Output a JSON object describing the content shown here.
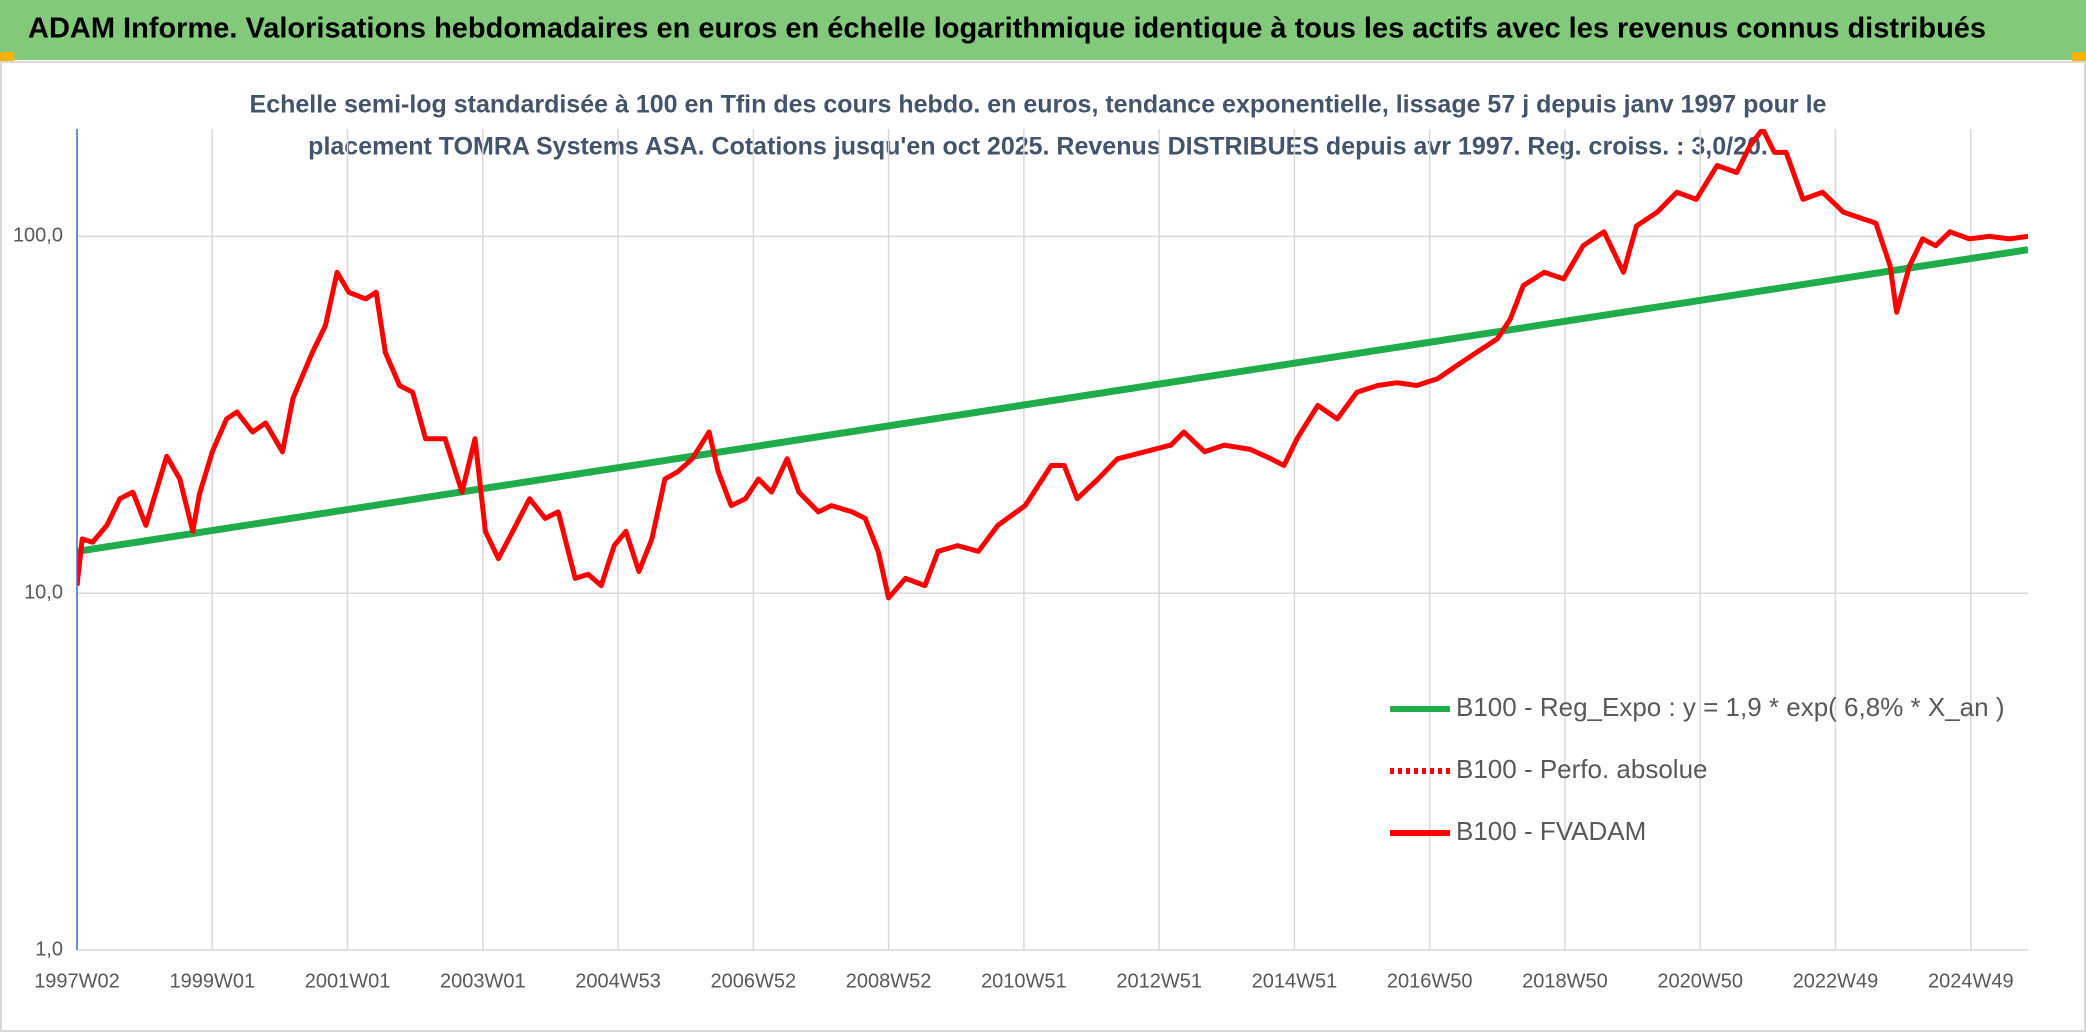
{
  "chart_data": {
    "type": "line",
    "title": "ADAM Informe. Valorisations hebdomadaires en euros en échelle logarithmique identique à tous les actifs avec les revenus connus distribués",
    "subtitle": [
      "Echelle semi-log standardisée à 100 en Tfin des cours hebdo. en euros, tendance exponentielle, lissage 57 j depuis janv 1997 pour le",
      "placement TOMRA Systems ASA. Cotations jusqu'en oct 2025. Revenus DISTRIBUES depuis avr 1997. Reg. croiss. : 3,0/20."
    ],
    "xlim": [
      0,
      1500
    ],
    "xticks": [
      {
        "value": 0,
        "label": "1997W02"
      },
      {
        "value": 104,
        "label": "1999W01"
      },
      {
        "value": 208,
        "label": "2001W01"
      },
      {
        "value": 312,
        "label": "2003W01"
      },
      {
        "value": 416,
        "label": "2004W53"
      },
      {
        "value": 520,
        "label": "2006W52"
      },
      {
        "value": 624,
        "label": "2008W52"
      },
      {
        "value": 728,
        "label": "2010W51"
      },
      {
        "value": 832,
        "label": "2012W51"
      },
      {
        "value": 936,
        "label": "2014W51"
      },
      {
        "value": 1040,
        "label": "2016W50"
      },
      {
        "value": 1144,
        "label": "2018W50"
      },
      {
        "value": 1248,
        "label": "2020W50"
      },
      {
        "value": 1352,
        "label": "2022W49"
      },
      {
        "value": 1456,
        "label": "2024W49"
      }
    ],
    "ylim": [
      1,
      200
    ],
    "yticks": [
      {
        "value": 1,
        "label": "1,0"
      },
      {
        "value": 10,
        "label": "10,0"
      },
      {
        "value": 100,
        "label": "100,0"
      }
    ],
    "log_y": true,
    "grid": true,
    "legend": "right",
    "series": [
      {
        "name": "B100 - Reg_Expo : y = 1,9 * exp( 6,8% *  X_an )",
        "color": "#1fad4b",
        "style": "solid",
        "x": [
          0,
          1500
        ],
        "values": [
          13.1,
          91.8
        ]
      },
      {
        "name": "B100 - Perfo. absolue",
        "color": "#ff0000",
        "style": "dotted",
        "x": [],
        "values": []
      },
      {
        "name": "B100 - FVADAM",
        "color": "#ff0000",
        "style": "solid",
        "x": [
          0,
          4,
          12,
          23,
          33,
          43,
          53,
          69,
          79,
          89,
          94,
          104,
          115,
          123,
          135,
          145,
          158,
          166,
          181,
          191,
          200,
          209,
          222,
          230,
          237,
          248,
          258,
          268,
          283,
          296,
          306,
          314,
          324,
          335,
          348,
          360,
          370,
          383,
          393,
          403,
          413,
          422,
          432,
          442,
          452,
          462,
          473,
          486,
          493,
          503,
          514,
          524,
          534,
          546,
          555,
          570,
          580,
          596,
          606,
          616,
          624,
          637,
          652,
          662,
          677,
          693,
          708,
          729,
          749,
          759,
          769,
          785,
          800,
          821,
          841,
          851,
          867,
          882,
          902,
          918,
          928,
          938,
          954,
          969,
          984,
          1000,
          1015,
          1030,
          1046,
          1061,
          1076,
          1092,
          1102,
          1112,
          1128,
          1143,
          1158,
          1174,
          1189,
          1199,
          1215,
          1230,
          1245,
          1261,
          1276,
          1286,
          1296,
          1305,
          1314,
          1327,
          1342,
          1358,
          1373,
          1383,
          1394,
          1399,
          1409,
          1419,
          1429,
          1440,
          1455,
          1470,
          1486,
          1500
        ],
        "values": [
          10.5,
          14.2,
          13.9,
          15.5,
          18.4,
          19.2,
          15.5,
          24.2,
          20.9,
          14.9,
          18.9,
          24.9,
          30.8,
          32.2,
          28.3,
          30.0,
          24.9,
          35.1,
          47.3,
          56.2,
          79.3,
          69.7,
          66.8,
          69.7,
          47.3,
          38.2,
          36.6,
          27.1,
          27.1,
          19.2,
          27.1,
          14.9,
          12.5,
          14.9,
          18.4,
          16.2,
          16.9,
          11.0,
          11.3,
          10.5,
          13.6,
          14.9,
          11.5,
          14.2,
          20.9,
          21.9,
          23.8,
          28.3,
          21.9,
          17.6,
          18.4,
          20.9,
          19.2,
          23.8,
          19.2,
          16.9,
          17.6,
          16.9,
          16.2,
          13.1,
          9.7,
          11.0,
          10.5,
          13.1,
          13.6,
          13.1,
          15.5,
          17.6,
          22.8,
          22.8,
          18.4,
          20.9,
          23.8,
          24.9,
          26.0,
          28.3,
          24.9,
          26.0,
          25.3,
          23.8,
          22.8,
          27.1,
          33.6,
          30.8,
          36.6,
          38.2,
          38.9,
          38.2,
          39.9,
          43.5,
          47.3,
          51.6,
          58.7,
          72.8,
          79.3,
          76.0,
          94.2,
          103,
          79.3,
          107,
          117,
          133,
          127,
          158,
          151,
          179,
          200,
          172,
          172,
          127,
          133,
          117,
          112,
          109,
          82.8,
          61.3,
          82.8,
          98.4,
          94.2,
          103,
          98.4,
          100,
          98.4,
          100
        ]
      }
    ]
  }
}
